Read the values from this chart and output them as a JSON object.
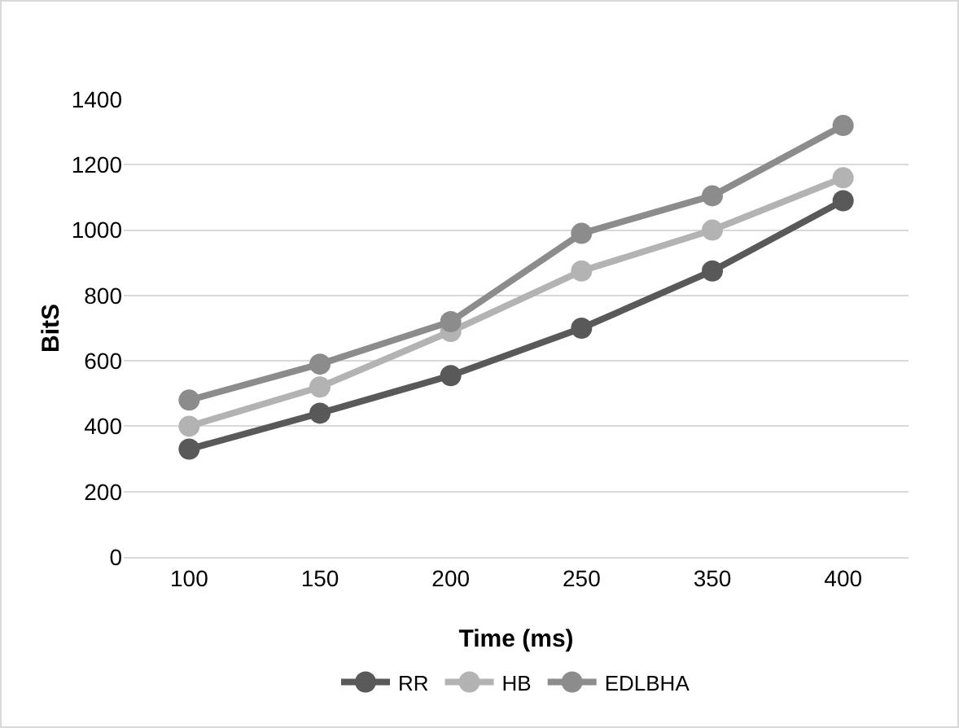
{
  "chart_data": {
    "type": "line",
    "xlabel": "Time (ms)",
    "ylabel": "BitS",
    "categories": [
      "100",
      "150",
      "200",
      "250",
      "350",
      "400"
    ],
    "series": [
      {
        "name": "RR",
        "color": "#595959",
        "values": [
          330,
          440,
          555,
          700,
          875,
          1090
        ]
      },
      {
        "name": "HB",
        "color": "#b3b3b3",
        "values": [
          400,
          520,
          690,
          875,
          1000,
          1160
        ]
      },
      {
        "name": "EDLBHA",
        "color": "#8c8c8c",
        "values": [
          480,
          590,
          720,
          990,
          1105,
          1320
        ]
      }
    ],
    "ylim": [
      0,
      1400
    ],
    "yticks": [
      0,
      200,
      400,
      600,
      800,
      1000,
      1200,
      1400
    ],
    "grid": "y",
    "legend": "bottom",
    "marker": "circle",
    "line_style": "solid"
  }
}
